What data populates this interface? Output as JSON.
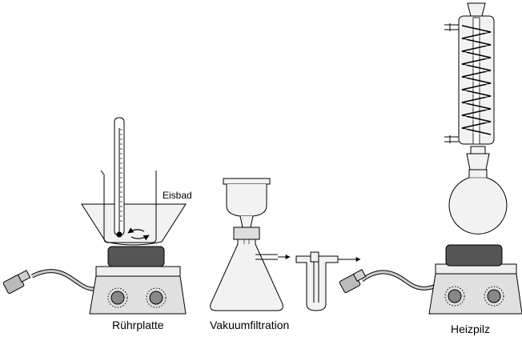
{
  "labels": {
    "eisbad": "Eisbad",
    "ruehrplatte": "Rührplatte",
    "vakuumfiltration": "Vakuumfiltration",
    "heizpilz": "Heizpilz"
  },
  "colors": {
    "stroke": "#000000",
    "glass": "#f2f2f2",
    "device_body": "#e0e0e0",
    "device_top": "#eeeeee",
    "heating_pad": "#555555",
    "knob": "#888888",
    "plug": "#bbbbbb"
  }
}
